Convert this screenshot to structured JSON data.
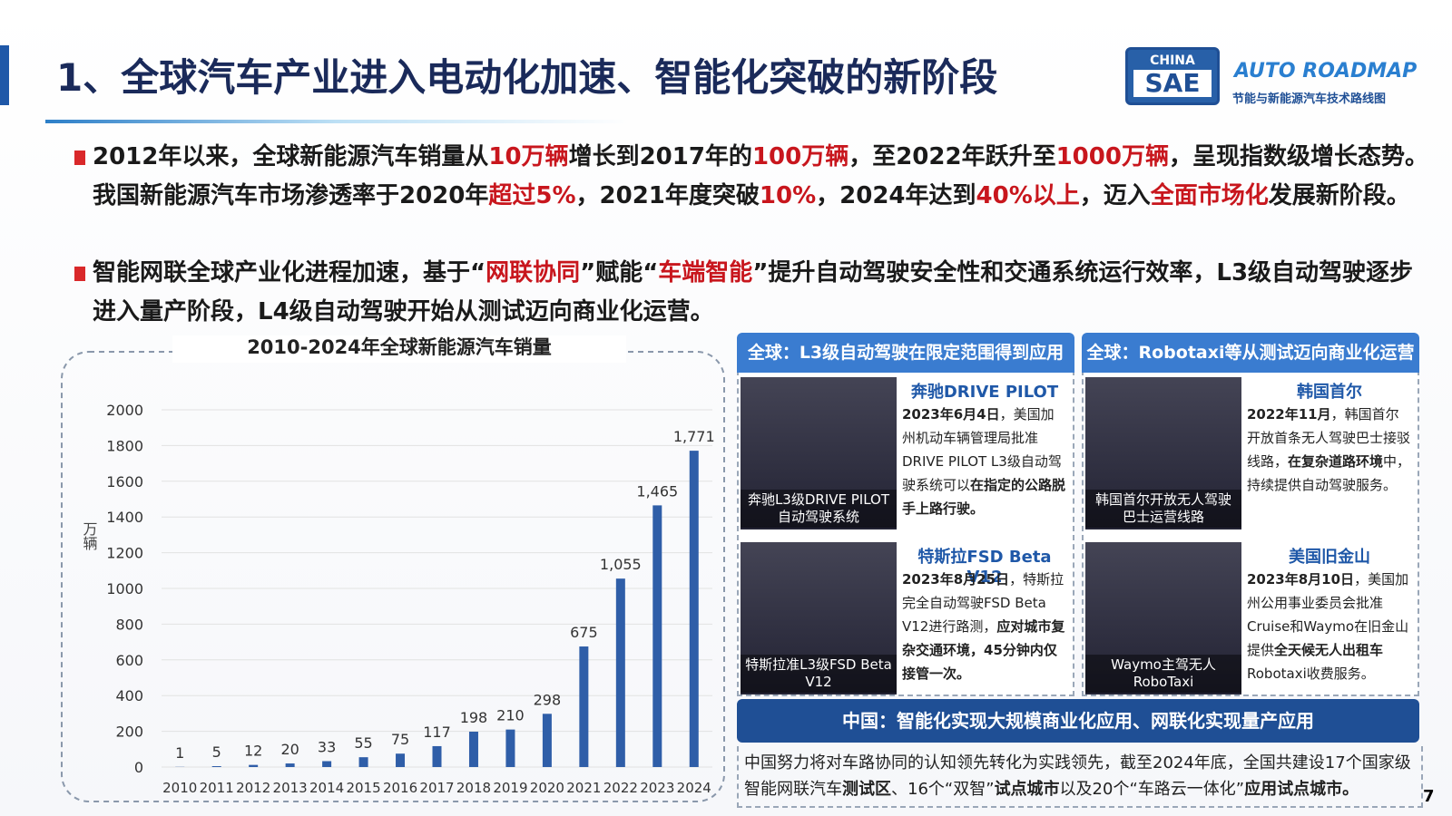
{
  "header": {
    "title": "1、全球汽车产业进入电动化加速、智能化突破的新阶段",
    "logo_top": "CHINA",
    "logo_bottom": "SAE",
    "brand": "AUTO ROADMAP",
    "brand_sub": "节能与新能源汽车技术路线图"
  },
  "bullets": [
    [
      {
        "text": "2012年以来，全球新能源汽车销量从"
      },
      {
        "text": "10万辆",
        "style": "red"
      },
      {
        "text": "增长到2017年的"
      },
      {
        "text": "100万辆",
        "style": "red"
      },
      {
        "text": "，至2022年跃升至"
      },
      {
        "text": "1000万辆",
        "style": "red"
      },
      {
        "text": "，呈现指数级增长态势。我国新能源汽车市场渗透率于2020年"
      },
      {
        "text": "超过5%",
        "style": "red"
      },
      {
        "text": "，2021年度突破"
      },
      {
        "text": "10%",
        "style": "red"
      },
      {
        "text": "，2024年达到"
      },
      {
        "text": "40%以上",
        "style": "red"
      },
      {
        "text": "，迈入"
      },
      {
        "text": "全面市场化",
        "style": "red"
      },
      {
        "text": "发展新阶段。"
      }
    ],
    [
      {
        "text": "智能网联全球产业化进程加速，基于“"
      },
      {
        "text": "网联协同",
        "style": "red"
      },
      {
        "text": "”赋能“"
      },
      {
        "text": "车端智能",
        "style": "red"
      },
      {
        "text": "”提升自动驾驶安全性和交通系统运行效率，L3级自动驾驶逐步进入量产阶段，L4级自动驾驶开始从测试迈向商业化运营。"
      }
    ]
  ],
  "chart_data": {
    "type": "bar",
    "title": "2010-2024年全球新能源汽车销量",
    "y_label": "万辆",
    "categories": [
      "2010",
      "2011",
      "2012",
      "2013",
      "2014",
      "2015",
      "2016",
      "2017",
      "2018",
      "2019",
      "2020",
      "2021",
      "2022",
      "2023",
      "2024"
    ],
    "values": [
      1,
      5,
      12,
      20,
      33,
      55,
      75,
      117,
      198,
      210,
      298,
      675,
      1055,
      1465,
      1771
    ],
    "value_labels": [
      "1",
      "5",
      "12",
      "20",
      "33",
      "55",
      "75",
      "117",
      "198",
      "210",
      "298",
      "675",
      "1,055",
      "1,465",
      "1,771"
    ],
    "color": "#2f5ea8",
    "ylim": [
      0,
      2000
    ],
    "yticks": [
      0,
      200,
      400,
      600,
      800,
      1000,
      1200,
      1400,
      1600,
      1800,
      2000
    ],
    "grid": true
  },
  "panels": [
    {
      "header": "全球：L3级自动驾驶在限定范围得到应用",
      "cards": [
        {
          "title": "奔驰DRIVE PILOT",
          "caption": "奔驰L3级DRIVE PILOT自动驾驶系统",
          "body": [
            {
              "text": "2023年6月4日",
              "style": "bold"
            },
            {
              "text": "，美国加州机动车辆管理局批准DRIVE PILOT L3级自动驾驶系统可以"
            },
            {
              "text": "在指定的公路脱手上路行驶。",
              "style": "bold"
            }
          ]
        },
        {
          "title": "特斯拉FSD Beta V12",
          "caption": "特斯拉准L3级FSD Beta V12",
          "body": [
            {
              "text": "2023年8月25日",
              "style": "bold"
            },
            {
              "text": "，特斯拉完全自动驾驶FSD Beta V12进行路测，"
            },
            {
              "text": "应对城市复杂交通环境，45分钟内仅接管一次。",
              "style": "bold"
            }
          ]
        }
      ]
    },
    {
      "header": "全球：Robotaxi等从测试迈向商业化运营",
      "cards": [
        {
          "title": "韩国首尔",
          "caption": "韩国首尔开放无人驾驶巴士运营线路",
          "body": [
            {
              "text": "2022年11月",
              "style": "bold"
            },
            {
              "text": "，韩国首尔开放首条无人驾驶巴士接驳线路，"
            },
            {
              "text": "在复杂道路环境",
              "style": "bold"
            },
            {
              "text": "中，持续提供自动驾驶服务。"
            }
          ]
        },
        {
          "title": "美国旧金山",
          "caption": "Waymo主驾无人RoboTaxi",
          "body": [
            {
              "text": "2023年8月10日",
              "style": "bold"
            },
            {
              "text": "，美国加州公用事业委员会批准Cruise和Waymo在旧金山提供"
            },
            {
              "text": "全天候无人出租车",
              "style": "bold"
            },
            {
              "text": "Robotaxi收费服务。"
            }
          ]
        }
      ]
    }
  ],
  "china": {
    "header": "中国：智能化实现大规模商业化应用、网联化实现量产应用",
    "body": [
      {
        "text": "中国努力将对车路协同的认知领先转化为实践领先，截至2024年底，全国共建设17个国家级智能网联汽车"
      },
      {
        "text": "测试区",
        "style": "bold"
      },
      {
        "text": "、16个“双智”"
      },
      {
        "text": "试点城市",
        "style": "bold"
      },
      {
        "text": "以及20个“车路云一体化”"
      },
      {
        "text": "应用试点城市。",
        "style": "bold"
      }
    ]
  },
  "page_number": "7"
}
